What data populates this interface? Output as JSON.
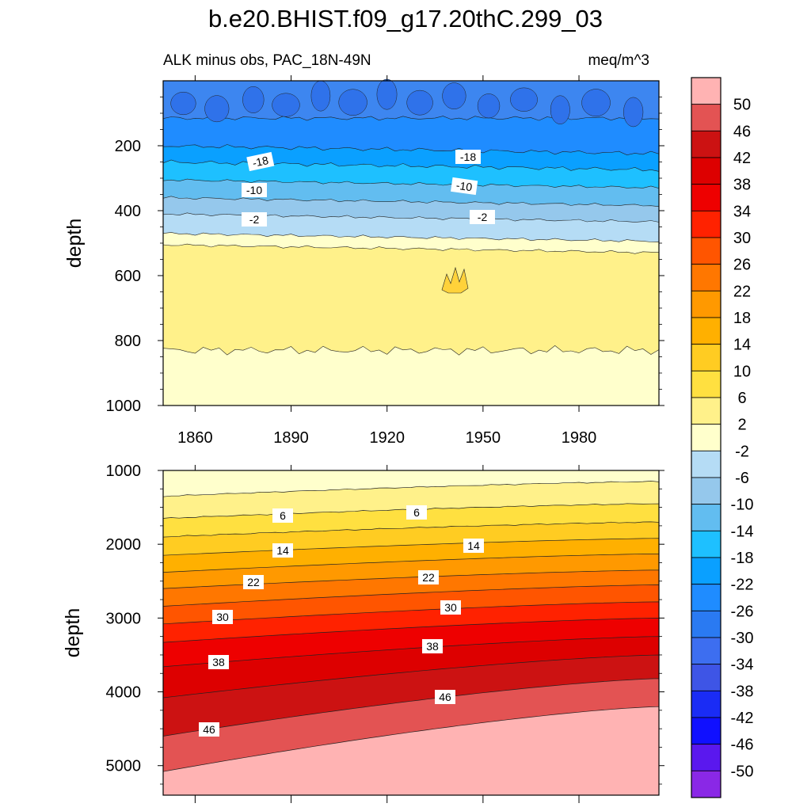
{
  "chart_data": {
    "type": "contour",
    "title": "b.e20.BHIST.f09_g17.20thC.299_03",
    "variable_label": "ALK minus obs, PAC_18N-49N",
    "units": "meq/m^3",
    "colorbar": {
      "levels": [
        "50",
        "46",
        "42",
        "38",
        "34",
        "30",
        "26",
        "22",
        "18",
        "14",
        "10",
        "6",
        "2",
        "-2",
        "-6",
        "-10",
        "-14",
        "-18",
        "-22",
        "-26",
        "-30",
        "-34",
        "-38",
        "-42",
        "-46",
        "-50"
      ],
      "colors": [
        "#ffb3b3",
        "#e35353",
        "#cc1212",
        "#dd0000",
        "#ee0000",
        "#ff2200",
        "#ff5500",
        "#ff7700",
        "#ff9900",
        "#ffb000",
        "#ffcc22",
        "#ffe040",
        "#fff18a",
        "#ffffcc",
        "#b5dcf5",
        "#95c8ec",
        "#62bdf0",
        "#1ec0ff",
        "#0aa0ff",
        "#1f8cff",
        "#2a7af2",
        "#3d6ef0",
        "#3e55e6",
        "#1a2cf5",
        "#1010ff",
        "#5a18ee",
        "#8a28e6"
      ]
    },
    "x_axis": {
      "range": [
        1850,
        2005
      ],
      "ticks": [
        "1860",
        "1890",
        "1920",
        "1950",
        "1980"
      ]
    },
    "panels": [
      {
        "name": "upper",
        "ylabel": "depth",
        "ylim": [
          0,
          1000
        ],
        "yticks": [
          "200",
          "400",
          "600",
          "800",
          "1000"
        ],
        "contour_labels": [
          "-18",
          "-18",
          "-10",
          "-10",
          "-2",
          "-2"
        ],
        "bands": [
          {
            "color": "#3d86f0",
            "top_depth": 0,
            "bottom_depth": 115
          },
          {
            "color": "#1f8cff",
            "top_depth": 115,
            "bottom_depth": 200
          },
          {
            "color": "#0aa0ff",
            "top_depth": 200,
            "bottom_depth": 250
          },
          {
            "color": "#1ec0ff",
            "top_depth": 250,
            "bottom_depth": 305
          },
          {
            "color": "#62bdf0",
            "top_depth": 305,
            "bottom_depth": 360
          },
          {
            "color": "#95c8ec",
            "top_depth": 360,
            "bottom_depth": 410
          },
          {
            "color": "#b5dcf5",
            "top_depth": 410,
            "bottom_depth": 470
          },
          {
            "color": "#ffffcc",
            "top_depth": 470,
            "bottom_depth": 505
          },
          {
            "color": "#fff18a",
            "top_depth": 505,
            "bottom_depth": 830
          },
          {
            "color": "#ffffcc",
            "top_depth": 830,
            "bottom_depth": 1000
          }
        ]
      },
      {
        "name": "lower",
        "ylabel": "depth",
        "ylim": [
          1000,
          5400
        ],
        "yticks": [
          "1000",
          "2000",
          "3000",
          "4000",
          "5000"
        ],
        "contour_labels": [
          "6",
          "6",
          "14",
          "14",
          "22",
          "22",
          "30",
          "30",
          "38",
          "38",
          "46",
          "46"
        ],
        "levels": [
          {
            "value": 2,
            "d_start": 1350,
            "d_end": 1150,
            "color": "#fff18a"
          },
          {
            "value": 6,
            "d_start": 1650,
            "d_end": 1450,
            "color": "#ffe040"
          },
          {
            "value": 10,
            "d_start": 1900,
            "d_end": 1700,
            "color": "#ffcc22"
          },
          {
            "value": 14,
            "d_start": 2150,
            "d_end": 1920,
            "color": "#ffb000"
          },
          {
            "value": 18,
            "d_start": 2380,
            "d_end": 2130,
            "color": "#ff9900"
          },
          {
            "value": 22,
            "d_start": 2600,
            "d_end": 2350,
            "color": "#ff7700"
          },
          {
            "value": 26,
            "d_start": 2840,
            "d_end": 2550,
            "color": "#ff5500"
          },
          {
            "value": 30,
            "d_start": 3080,
            "d_end": 2780,
            "color": "#ff2200"
          },
          {
            "value": 34,
            "d_start": 3330,
            "d_end": 3000,
            "color": "#ee0000"
          },
          {
            "value": 38,
            "d_start": 3660,
            "d_end": 3250,
            "color": "#dd0000"
          },
          {
            "value": 42,
            "d_start": 4080,
            "d_end": 3500,
            "color": "#cc1212"
          },
          {
            "value": 46,
            "d_start": 4600,
            "d_end": 3820,
            "color": "#e35353"
          },
          {
            "value": 50,
            "d_start": 5080,
            "d_end": 4200,
            "color": "#ffb3b3"
          }
        ],
        "surface_color": "#ffffcc"
      }
    ]
  }
}
